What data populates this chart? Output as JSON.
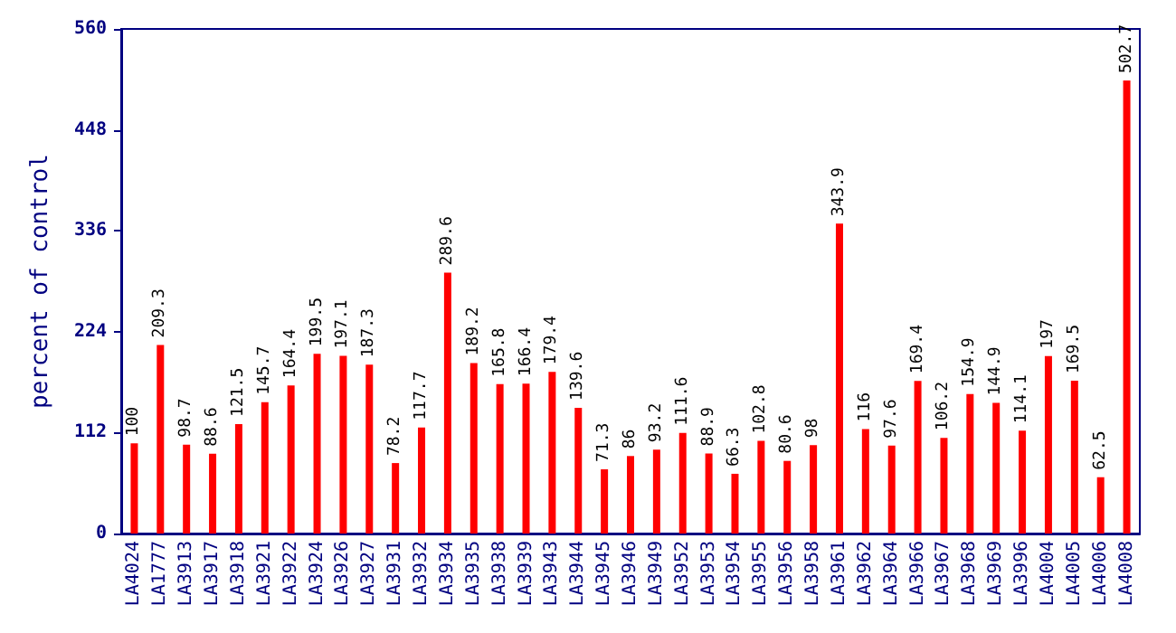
{
  "chart_data": {
    "type": "bar",
    "ylabel": "percent of control",
    "categories": [
      "LA4024",
      "LA1777",
      "LA3913",
      "LA3917",
      "LA3918",
      "LA3921",
      "LA3922",
      "LA3924",
      "LA3926",
      "LA3927",
      "LA3931",
      "LA3932",
      "LA3934",
      "LA3935",
      "LA3938",
      "LA3939",
      "LA3943",
      "LA3944",
      "LA3945",
      "LA3946",
      "LA3949",
      "LA3952",
      "LA3953",
      "LA3954",
      "LA3955",
      "LA3956",
      "LA3958",
      "LA3961",
      "LA3962",
      "LA3964",
      "LA3966",
      "LA3967",
      "LA3968",
      "LA3969",
      "LA3996",
      "LA4004",
      "LA4005",
      "LA4006",
      "LA4008"
    ],
    "values": [
      100,
      209.3,
      98.7,
      88.6,
      121.5,
      145.7,
      164.4,
      199.5,
      197.1,
      187.3,
      78.2,
      117.7,
      289.6,
      189.2,
      165.8,
      166.4,
      179.4,
      139.6,
      71.3,
      86,
      93.2,
      111.6,
      88.9,
      66.3,
      102.8,
      80.6,
      98,
      343.9,
      116,
      97.6,
      169.4,
      106.2,
      154.9,
      144.9,
      114.1,
      197,
      169.5,
      62.5,
      502.7
    ],
    "color": "#ff0000",
    "ylim": [
      0,
      560
    ],
    "yticks": [
      0,
      112,
      224,
      336,
      448,
      560
    ],
    "grid": false,
    "data_labels": true
  }
}
